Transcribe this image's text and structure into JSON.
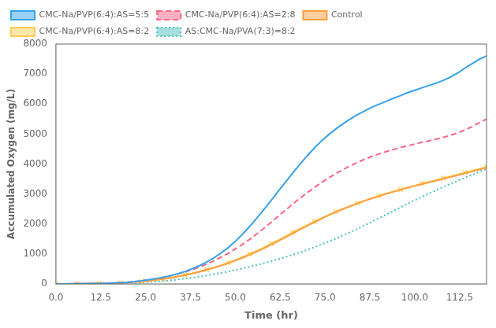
{
  "chart_data": {
    "type": "line",
    "xlabel": "Time (hr)",
    "ylabel": "Accumulated Oxygen (mg/L)",
    "xlim": [
      0,
      120
    ],
    "ylim": [
      0,
      8000
    ],
    "xticks": [
      {
        "value": 0,
        "label": "0.0"
      },
      12.5,
      {
        "value": 25,
        "label": "25.0"
      },
      37.5,
      {
        "value": 50,
        "label": "50.0"
      },
      62.5,
      {
        "value": 75,
        "label": "75.0"
      },
      87.5,
      {
        "value": 100,
        "label": "100.0"
      },
      112.5
    ],
    "yticks": [
      0,
      1000,
      2000,
      3000,
      4000,
      5000,
      6000,
      7000,
      8000
    ],
    "grid": false,
    "legend": "upper left",
    "x": [
      0,
      2,
      4,
      6,
      8,
      10,
      12,
      14,
      16,
      18,
      20,
      22,
      24,
      26,
      28,
      30,
      32,
      34,
      36,
      38,
      40,
      42,
      44,
      46,
      48,
      50,
      52,
      54,
      56,
      58,
      60,
      62,
      64,
      66,
      68,
      70,
      72,
      74,
      76,
      78,
      80,
      82,
      84,
      86,
      88,
      90,
      92,
      94,
      96,
      98,
      100,
      102,
      104,
      106,
      108,
      110,
      112,
      114,
      116,
      118,
      120
    ],
    "series": [
      {
        "name": "CMC-Na/PVP(6:4):AS=5:5",
        "line_style": "solid",
        "values": [
          0,
          2,
          4,
          6,
          8,
          12,
          16,
          22,
          30,
          42,
          58,
          80,
          108,
          142,
          180,
          225,
          278,
          340,
          415,
          505,
          610,
          730,
          870,
          1030,
          1210,
          1420,
          1660,
          1920,
          2200,
          2490,
          2790,
          3100,
          3400,
          3700,
          3990,
          4270,
          4530,
          4770,
          4980,
          5170,
          5340,
          5500,
          5640,
          5770,
          5890,
          5990,
          6090,
          6190,
          6280,
          6380,
          6460,
          6540,
          6620,
          6700,
          6790,
          6900,
          7040,
          7200,
          7350,
          7490,
          7600
        ]
      },
      {
        "name": "CMC-Na/PVP(6:4):AS=2:8",
        "line_style": "dashed",
        "values": [
          0,
          2,
          4,
          6,
          8,
          12,
          16,
          22,
          30,
          42,
          58,
          80,
          108,
          142,
          180,
          225,
          275,
          333,
          400,
          477,
          565,
          663,
          772,
          892,
          1022,
          1165,
          1320,
          1490,
          1672,
          1863,
          2060,
          2264,
          2467,
          2665,
          2857,
          3040,
          3215,
          3380,
          3535,
          3680,
          3815,
          3940,
          4053,
          4157,
          4250,
          4335,
          4413,
          4483,
          4548,
          4608,
          4665,
          4720,
          4775,
          4830,
          4890,
          4960,
          5040,
          5135,
          5250,
          5380,
          5500
        ]
      },
      {
        "name": "Control",
        "line_style": "solid",
        "values": [
          0,
          2,
          3,
          5,
          7,
          10,
          14,
          19,
          26,
          35,
          47,
          63,
          83,
          107,
          135,
          168,
          206,
          249,
          297,
          350,
          408,
          471,
          539,
          613,
          693,
          779,
          872,
          972,
          1079,
          1192,
          1310,
          1432,
          1558,
          1685,
          1812,
          1937,
          2059,
          2177,
          2290,
          2397,
          2498,
          2594,
          2685,
          2770,
          2851,
          2928,
          3002,
          3073,
          3141,
          3206,
          3269,
          3330,
          3390,
          3449,
          3508,
          3567,
          3627,
          3688,
          3750,
          3815,
          3880
        ]
      },
      {
        "name": "CMC-Na/PVP(6:4):AS=8:2",
        "line_style": "solid",
        "marker": "x",
        "values": [
          0,
          2,
          3,
          5,
          7,
          10,
          14,
          19,
          26,
          35,
          47,
          63,
          83,
          107,
          135,
          168,
          206,
          249,
          297,
          352,
          412,
          477,
          548,
          625,
          708,
          798,
          895,
          999,
          1110,
          1225,
          1345,
          1468,
          1593,
          1719,
          1843,
          1964,
          2082,
          2195,
          2303,
          2406,
          2504,
          2598,
          2688,
          2773,
          2855,
          2933,
          3008,
          3080,
          3150,
          3217,
          3282,
          3345,
          3407,
          3468,
          3529,
          3590,
          3652,
          3714,
          3777,
          3840,
          3900
        ]
      },
      {
        "name": "AS:CMC-Na/PVA(7:3)=8:2",
        "line_style": "dotted",
        "values": [
          0,
          1,
          2,
          3,
          4,
          6,
          8,
          11,
          15,
          20,
          27,
          36,
          48,
          62,
          79,
          99,
          122,
          148,
          177,
          209,
          244,
          282,
          323,
          367,
          414,
          464,
          517,
          573,
          632,
          694,
          759,
          827,
          899,
          975,
          1054,
          1138,
          1225,
          1317,
          1413,
          1513,
          1617,
          1725,
          1837,
          1952,
          2070,
          2190,
          2311,
          2432,
          2553,
          2673,
          2791,
          2907,
          3020,
          3130,
          3237,
          3341,
          3443,
          3544,
          3643,
          3741,
          3836
        ]
      }
    ]
  }
}
